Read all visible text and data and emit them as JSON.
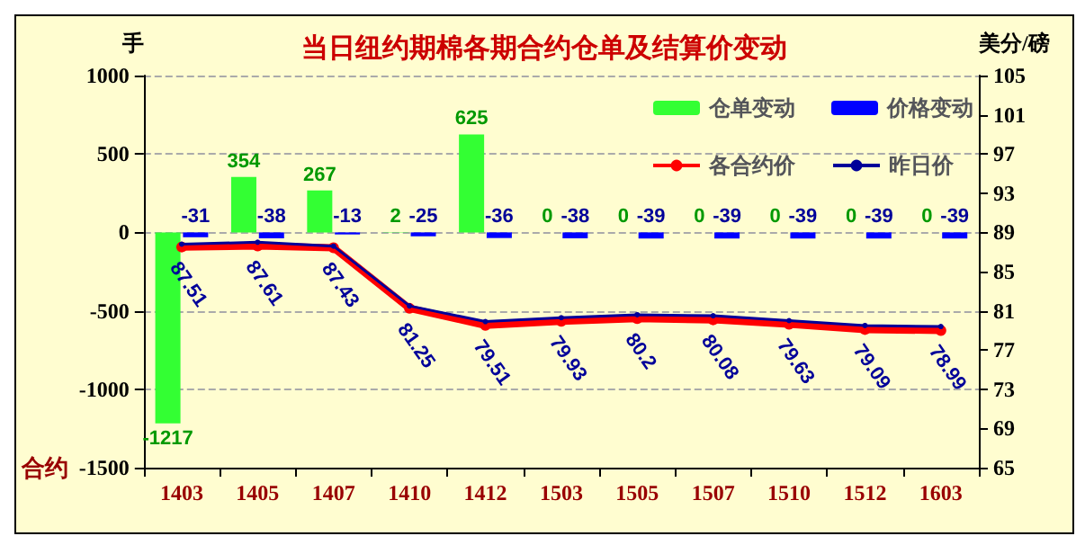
{
  "chart_data": {
    "type": "bar",
    "title": "当日纽约期棉各期合约仓单及结算价变动",
    "ylabel": "手",
    "y2label": "美分/磅",
    "xlabel": "合约",
    "categories": [
      "1403",
      "1405",
      "1407",
      "1410",
      "1412",
      "1503",
      "1505",
      "1507",
      "1510",
      "1512",
      "1603"
    ],
    "series": [
      {
        "name": "仓单变动",
        "color": "#33ff33",
        "values": [
          -1217,
          354,
          267,
          2,
          625,
          0,
          0,
          0,
          0,
          0,
          0
        ],
        "data_labels": true
      },
      {
        "name": "价格变动",
        "color": "#0000ff",
        "values": [
          -31,
          -38,
          -13,
          -25,
          -36,
          -38,
          -39,
          -39,
          -39,
          -39,
          -39
        ],
        "data_labels": true
      },
      {
        "name": "各合约价",
        "type": "line",
        "axis": "y2",
        "color": "#ff0000",
        "values": [
          87.51,
          87.61,
          87.43,
          81.25,
          79.51,
          79.93,
          80.2,
          80.08,
          79.63,
          79.09,
          78.99
        ],
        "data_labels": true
      },
      {
        "name": "昨日价",
        "type": "line",
        "axis": "y2",
        "color": "#000099",
        "values": [
          87.8,
          88.0,
          87.6,
          81.5,
          79.9,
          80.3,
          80.6,
          80.5,
          80.0,
          79.5,
          79.4
        ]
      }
    ],
    "ylim": [
      -1500,
      1000
    ],
    "yticks": [
      -1500,
      -1000,
      -500,
      0,
      500,
      1000
    ],
    "y2lim": [
      65,
      105
    ],
    "y2ticks": [
      65,
      69,
      73,
      77,
      81,
      85,
      89,
      93,
      97,
      101,
      105
    ],
    "grid": "y",
    "legend": "top right",
    "marker": "circle"
  }
}
